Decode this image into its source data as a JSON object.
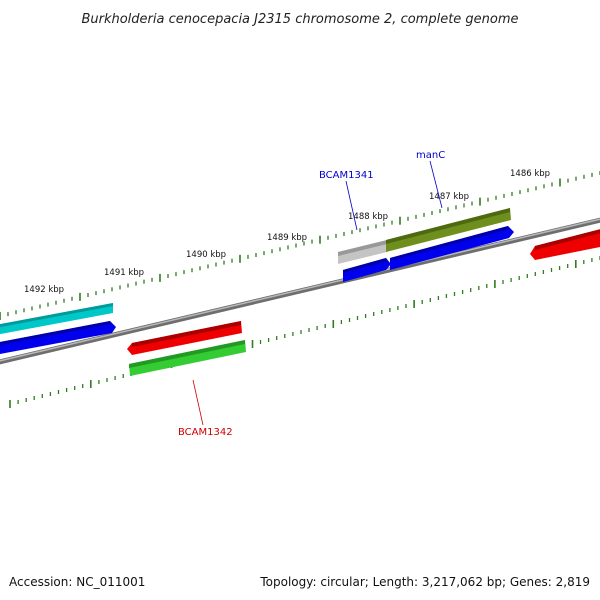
{
  "title": "Burkholderia cenocepacia J2315 chromosome 2, complete genome",
  "footer": {
    "accession": "Accession: NC_011001",
    "summary": "Topology: circular; Length: 3,217,062 bp; Genes: 2,819"
  },
  "colors": {
    "backbone": "#808080",
    "tick": "#2e7d1e",
    "label_blue": "#0000cc",
    "label_red": "#cc0000"
  },
  "kbp_labels": [
    "1492 kbp",
    "1491 kbp",
    "1490 kbp",
    "1489 kbp",
    "1488 kbp",
    "1487 kbp",
    "1486 kbp"
  ],
  "gene_labels": {
    "bcam1341": "BCAM1341",
    "manc": "manC",
    "bcam1342": "BCAM1342"
  }
}
